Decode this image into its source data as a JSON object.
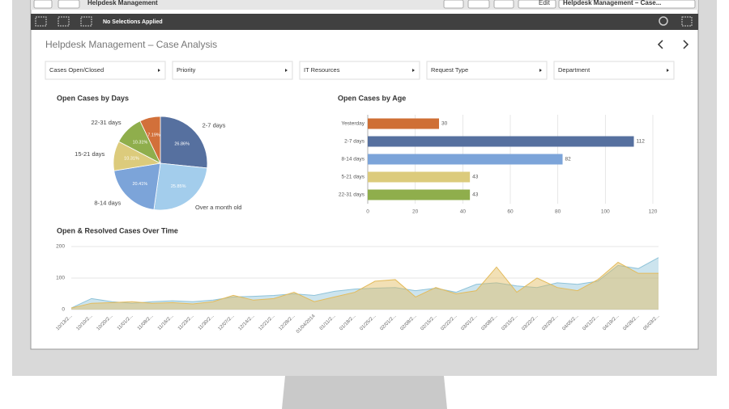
{
  "toolbar": {
    "app_title": "Helpdesk Management",
    "edit": "Edit",
    "sheet_menu": "Helpdesk Management – Case..."
  },
  "selection_bar": {
    "status": "No Selections Applied"
  },
  "sheet": {
    "title": "Helpdesk Management – Case Analysis",
    "filters": [
      "Cases Open/Closed",
      "Priority",
      "IT Resources",
      "Request Type",
      "Department"
    ]
  },
  "chart_data": [
    {
      "type": "pie",
      "title": "Open Cases by Days",
      "categories": [
        "2-7 days",
        "Over a month old",
        "8-14 days",
        "15-21 days",
        "22-31 days",
        null
      ],
      "values": [
        26.86,
        25.85,
        20.41,
        10.31,
        10.31,
        7.19
      ],
      "value_labels": [
        "26.86%",
        "25.85%",
        "20.41%",
        "10.31%",
        "10.31%",
        "7.19%"
      ],
      "colors": [
        "#56709f",
        "#a3cdec",
        "#7ca4d9",
        "#dccb7c",
        "#8fae4c",
        "#d2703a"
      ]
    },
    {
      "type": "bar",
      "title": "Open Cases by Age",
      "orientation": "horizontal",
      "categories": [
        "Yesterday",
        "2-7 days",
        "8-14 days",
        "5-21 days",
        "22-31 days"
      ],
      "values": [
        30,
        112,
        82,
        43,
        43
      ],
      "colors": [
        "#cf6f35",
        "#56709f",
        "#7ca4d9",
        "#dccb7c",
        "#8fae4c"
      ],
      "xlim": [
        0,
        120
      ],
      "xticks": [
        0,
        20,
        40,
        60,
        80,
        100,
        120
      ],
      "grid": true
    },
    {
      "type": "line",
      "title": "Open & Resolved Cases Over Time",
      "categories": [
        "10/13/2...",
        "10/10/2...",
        "10/20/2...",
        "11/01/2...",
        "11/08/2...",
        "11/16/2...",
        "11/23/2...",
        "11/30/2...",
        "12/07/2...",
        "12/14/2...",
        "12/21/2...",
        "12/28/2...",
        "01/04/2014",
        "01/11/2...",
        "01/18/2...",
        "01/25/2...",
        "02/01/2...",
        "02/08/2...",
        "02/15/2...",
        "02/22/2...",
        "03/01/2...",
        "03/08/2...",
        "03/15/2...",
        "03/22/2...",
        "03/29/2...",
        "04/05/2...",
        "04/12/2...",
        "04/19/2...",
        "04/26/2...",
        "05/03/2..."
      ],
      "series": [
        {
          "color": "#8fc3d9",
          "values": [
            5,
            35,
            25,
            20,
            25,
            28,
            25,
            30,
            40,
            42,
            45,
            50,
            45,
            58,
            65,
            68,
            70,
            60,
            68,
            55,
            80,
            85,
            75,
            70,
            85,
            80,
            90,
            140,
            130,
            165
          ]
        },
        {
          "color": "#e3bb5c",
          "values": [
            5,
            20,
            22,
            25,
            20,
            22,
            18,
            25,
            45,
            30,
            35,
            55,
            25,
            40,
            55,
            90,
            95,
            40,
            70,
            50,
            60,
            135,
            55,
            100,
            70,
            60,
            95,
            150,
            115,
            115
          ]
        }
      ],
      "ylim": [
        0,
        200
      ],
      "yticks": [
        0,
        100,
        200
      ],
      "grid": true
    }
  ]
}
